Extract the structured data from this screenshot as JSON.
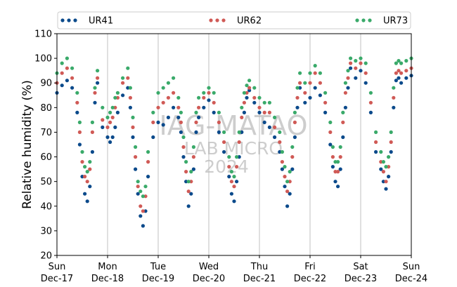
{
  "watermark": {
    "line1": "IAG-MATAO",
    "line2": "LAB MICRO",
    "line3": "2024"
  },
  "chart_data": {
    "type": "scatter",
    "title": "",
    "xlabel": "",
    "ylabel": "Relative humidity (%)",
    "ylim": [
      20,
      110
    ],
    "yticks": [
      20,
      30,
      40,
      50,
      60,
      70,
      80,
      90,
      100,
      110
    ],
    "xlim": [
      "2023-12-17",
      "2023-12-24"
    ],
    "xticks": [
      {
        "day": "Sun",
        "date": "Dec-17"
      },
      {
        "day": "Mon",
        "date": "Dec-18"
      },
      {
        "day": "Tue",
        "date": "Dec-19"
      },
      {
        "day": "Wed",
        "date": "Dec-20"
      },
      {
        "day": "Thu",
        "date": "Dec-21"
      },
      {
        "day": "Fri",
        "date": "Dec-22"
      },
      {
        "day": "Sat",
        "date": "Dec-23"
      },
      {
        "day": "Sun",
        "date": "Dec-24"
      }
    ],
    "grid": "vertical",
    "legend_position": "top",
    "x_unit": "days since Dec-17 00:00",
    "series": [
      {
        "name": "UR41",
        "color": "#0b4a8b",
        "x": [
          0.0,
          0.1,
          0.2,
          0.3,
          0.4,
          0.45,
          0.5,
          0.55,
          0.6,
          0.65,
          0.7,
          0.75,
          0.8,
          0.9,
          1.0,
          1.05,
          1.1,
          1.15,
          1.2,
          1.3,
          1.4,
          1.45,
          1.5,
          1.55,
          1.6,
          1.65,
          1.7,
          1.75,
          1.8,
          1.9,
          2.0,
          2.1,
          2.2,
          2.3,
          2.4,
          2.45,
          2.5,
          2.55,
          2.6,
          2.65,
          2.7,
          2.75,
          2.8,
          2.9,
          3.0,
          3.1,
          3.2,
          3.3,
          3.4,
          3.45,
          3.5,
          3.55,
          3.6,
          3.65,
          3.7,
          3.75,
          3.8,
          3.9,
          4.0,
          4.1,
          4.2,
          4.3,
          4.4,
          4.45,
          4.5,
          4.55,
          4.6,
          4.65,
          4.7,
          4.75,
          4.8,
          4.9,
          5.0,
          5.1,
          5.2,
          5.3,
          5.4,
          5.45,
          5.5,
          5.55,
          5.6,
          5.65,
          5.7,
          5.75,
          5.8,
          5.9,
          6.0,
          6.1,
          6.2,
          6.3,
          6.4,
          6.45,
          6.5,
          6.55,
          6.6,
          6.65,
          6.7,
          6.75,
          6.8,
          6.9,
          7.0
        ],
        "y": [
          86,
          89,
          91,
          88,
          78,
          65,
          52,
          45,
          42,
          48,
          62,
          82,
          90,
          72,
          68,
          66,
          68,
          72,
          78,
          85,
          88,
          80,
          68,
          55,
          45,
          36,
          32,
          38,
          52,
          68,
          74,
          73,
          76,
          80,
          76,
          70,
          60,
          50,
          40,
          45,
          55,
          70,
          76,
          80,
          83,
          78,
          70,
          62,
          52,
          45,
          42,
          50,
          60,
          70,
          78,
          84,
          87,
          82,
          78,
          74,
          72,
          68,
          62,
          55,
          48,
          40,
          45,
          55,
          68,
          80,
          88,
          82,
          84,
          88,
          85,
          78,
          65,
          56,
          50,
          48,
          55,
          68,
          80,
          88,
          96,
          92,
          95,
          90,
          78,
          62,
          55,
          50,
          47,
          52,
          62,
          80,
          91,
          92,
          90,
          92,
          93
        ]
      },
      {
        "name": "UR62",
        "color": "#d05a56",
        "x": [
          0.0,
          0.1,
          0.2,
          0.3,
          0.4,
          0.45,
          0.5,
          0.55,
          0.6,
          0.65,
          0.7,
          0.75,
          0.8,
          0.9,
          1.0,
          1.05,
          1.1,
          1.15,
          1.2,
          1.3,
          1.4,
          1.45,
          1.5,
          1.55,
          1.6,
          1.65,
          1.7,
          1.75,
          1.8,
          1.9,
          2.0,
          2.1,
          2.2,
          2.3,
          2.4,
          2.45,
          2.5,
          2.55,
          2.6,
          2.65,
          2.7,
          2.75,
          2.8,
          2.9,
          3.0,
          3.1,
          3.2,
          3.3,
          3.4,
          3.45,
          3.5,
          3.55,
          3.6,
          3.65,
          3.7,
          3.75,
          3.8,
          3.9,
          4.0,
          4.1,
          4.2,
          4.3,
          4.4,
          4.45,
          4.5,
          4.55,
          4.6,
          4.65,
          4.7,
          4.75,
          4.8,
          4.9,
          5.0,
          5.1,
          5.2,
          5.3,
          5.4,
          5.45,
          5.5,
          5.55,
          5.6,
          5.65,
          5.7,
          5.75,
          5.8,
          5.9,
          6.0,
          6.1,
          6.2,
          6.3,
          6.4,
          6.45,
          6.5,
          6.55,
          6.6,
          6.65,
          6.7,
          6.75,
          6.8,
          6.9,
          7.0
        ],
        "y": [
          90,
          94,
          96,
          92,
          82,
          70,
          58,
          52,
          50,
          55,
          70,
          86,
          92,
          75,
          72,
          74,
          76,
          80,
          84,
          90,
          92,
          84,
          72,
          60,
          48,
          40,
          38,
          44,
          58,
          74,
          80,
          82,
          84,
          86,
          80,
          74,
          64,
          54,
          46,
          50,
          60,
          74,
          80,
          84,
          86,
          82,
          74,
          66,
          56,
          50,
          48,
          56,
          66,
          76,
          82,
          86,
          88,
          84,
          80,
          78,
          78,
          72,
          66,
          58,
          52,
          46,
          50,
          60,
          74,
          84,
          90,
          86,
          90,
          94,
          90,
          82,
          70,
          60,
          54,
          54,
          60,
          74,
          86,
          92,
          98,
          96,
          98,
          94,
          82,
          66,
          58,
          54,
          50,
          56,
          66,
          84,
          94,
          95,
          94,
          95,
          96
        ]
      },
      {
        "name": "UR73",
        "color": "#3aaa6a",
        "x": [
          0.0,
          0.1,
          0.2,
          0.3,
          0.4,
          0.45,
          0.5,
          0.55,
          0.6,
          0.65,
          0.7,
          0.75,
          0.8,
          0.9,
          1.0,
          1.05,
          1.1,
          1.15,
          1.2,
          1.3,
          1.4,
          1.45,
          1.5,
          1.55,
          1.6,
          1.65,
          1.7,
          1.75,
          1.8,
          1.9,
          2.0,
          2.1,
          2.2,
          2.3,
          2.4,
          2.45,
          2.5,
          2.55,
          2.6,
          2.65,
          2.7,
          2.75,
          2.8,
          2.9,
          3.0,
          3.1,
          3.2,
          3.3,
          3.4,
          3.45,
          3.5,
          3.55,
          3.6,
          3.65,
          3.7,
          3.75,
          3.8,
          3.9,
          4.0,
          4.1,
          4.2,
          4.3,
          4.4,
          4.45,
          4.5,
          4.55,
          4.6,
          4.65,
          4.7,
          4.75,
          4.8,
          4.9,
          5.0,
          5.1,
          5.2,
          5.3,
          5.4,
          5.45,
          5.5,
          5.55,
          5.6,
          5.65,
          5.7,
          5.75,
          5.8,
          5.9,
          6.0,
          6.1,
          6.2,
          6.3,
          6.4,
          6.45,
          6.5,
          6.55,
          6.6,
          6.65,
          6.7,
          6.75,
          6.8,
          6.9,
          7.0
        ],
        "y": [
          94,
          98,
          100,
          96,
          86,
          74,
          62,
          56,
          54,
          58,
          74,
          88,
          95,
          80,
          76,
          78,
          80,
          84,
          86,
          92,
          96,
          88,
          76,
          64,
          50,
          46,
          44,
          48,
          62,
          78,
          86,
          88,
          90,
          92,
          84,
          78,
          68,
          58,
          50,
          54,
          64,
          78,
          84,
          86,
          88,
          86,
          78,
          70,
          60,
          54,
          52,
          60,
          70,
          80,
          86,
          89,
          91,
          88,
          84,
          82,
          82,
          76,
          70,
          62,
          56,
          50,
          54,
          64,
          78,
          88,
          94,
          90,
          94,
          97,
          94,
          86,
          74,
          64,
          58,
          58,
          64,
          78,
          90,
          95,
          100,
          99,
          100,
          98,
          86,
          70,
          62,
          58,
          56,
          60,
          70,
          88,
          98,
          99,
          98,
          99,
          100
        ]
      }
    ]
  }
}
